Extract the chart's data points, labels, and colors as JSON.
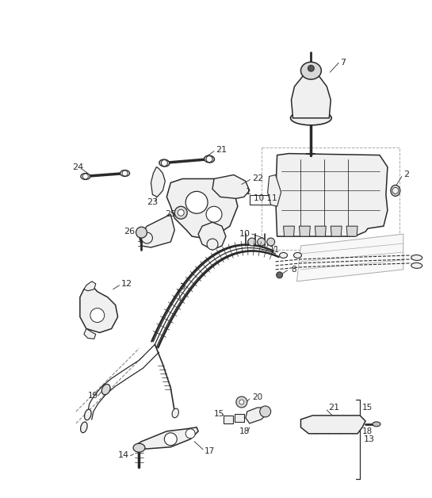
{
  "bg_color": "#ffffff",
  "fig_width": 5.45,
  "fig_height": 6.28,
  "dpi": 100,
  "lc": "#2a2a2a",
  "lc_gray": "#888888",
  "fc_light": "#f0f0f0",
  "fc_mid": "#d8d8d8",
  "fc_dark": "#c0c0c0"
}
